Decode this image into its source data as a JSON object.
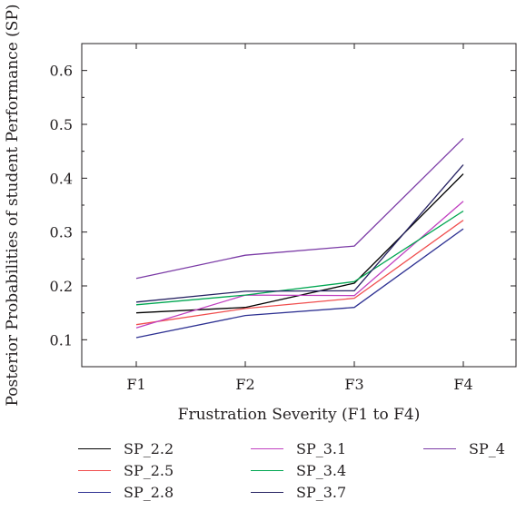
{
  "chart_data": {
    "type": "line",
    "title": "",
    "xlabel": "Frustration Severity (F1 to F4)",
    "ylabel": "Posterior Probabilities of student Performance (SP)",
    "categories": [
      "F1",
      "F2",
      "F3",
      "F4"
    ],
    "ylim": [
      0.05,
      0.65
    ],
    "yticks": [
      0.1,
      0.2,
      0.3,
      0.4,
      0.5,
      0.6
    ],
    "ytick_labels": [
      "0.1",
      "0.2",
      "0.3",
      "0.4",
      "0.5",
      "0.6"
    ],
    "grid": false,
    "legend_position": "bottom",
    "series": [
      {
        "name": "SP_2.2",
        "color": "#000000",
        "values": [
          0.15,
          0.16,
          0.205,
          0.408
        ]
      },
      {
        "name": "SP_2.5",
        "color": "#f04e4e",
        "values": [
          0.128,
          0.158,
          0.177,
          0.322
        ]
      },
      {
        "name": "SP_2.8",
        "color": "#2e3192",
        "values": [
          0.104,
          0.145,
          0.16,
          0.306
        ]
      },
      {
        "name": "SP_3.1",
        "color": "#c040c0",
        "values": [
          0.122,
          0.183,
          0.182,
          0.357
        ]
      },
      {
        "name": "SP_3.4",
        "color": "#00a651",
        "values": [
          0.165,
          0.183,
          0.208,
          0.339
        ]
      },
      {
        "name": "SP_3.7",
        "color": "#262262",
        "values": [
          0.17,
          0.19,
          0.191,
          0.425
        ]
      },
      {
        "name": "SP_4",
        "color": "#7b3ba6",
        "values": [
          0.214,
          0.257,
          0.274,
          0.474
        ]
      }
    ]
  }
}
